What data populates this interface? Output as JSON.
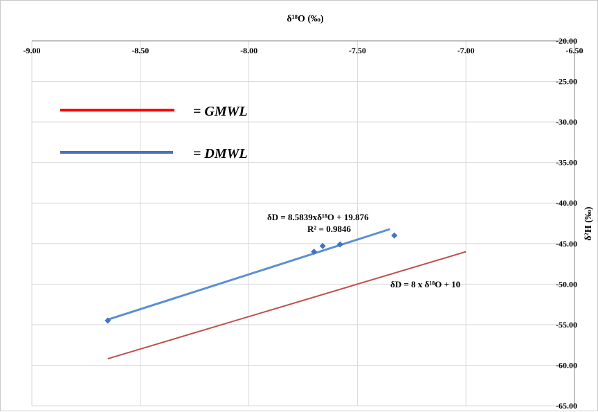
{
  "chart_data": {
    "type": "scatter",
    "xlabel": "δ¹⁸O (‰)",
    "ylabel": "δ²H (‰)",
    "xlim": [
      -9.0,
      -6.5
    ],
    "ylim": [
      -65.0,
      -20.0
    ],
    "x_ticks": [
      "-9.00",
      "-8.50",
      "-8.00",
      "-7.50",
      "-7.00",
      "-6.50"
    ],
    "y_ticks": [
      "-20.00",
      "-25.00",
      "-30.00",
      "-35.00",
      "-40.00",
      "-45.00",
      "-50.00",
      "-55.00",
      "-60.00",
      "-65.00"
    ],
    "x_axis_position": "top",
    "y_axis_position": "right",
    "grid": true,
    "legend": {
      "position": "top-left",
      "entries": [
        {
          "label": "= GMWL",
          "color": "#ff0000"
        },
        {
          "label": "= DMWL",
          "color": "#4472c4"
        }
      ]
    },
    "points": [
      {
        "x": -8.65,
        "y": -54.5
      },
      {
        "x": -7.7,
        "y": -46.0
      },
      {
        "x": -7.66,
        "y": -45.3
      },
      {
        "x": -7.58,
        "y": -45.1
      },
      {
        "x": -7.33,
        "y": -44.0
      }
    ],
    "point_color": "#4472c4",
    "lines": [
      {
        "name": "DMWL",
        "slope": 8.5839,
        "intercept": 19.876,
        "x_range": [
          -8.65,
          -7.35
        ],
        "color": "#5b8fd4"
      },
      {
        "name": "GMWL",
        "slope": 8,
        "intercept": 10,
        "x_range": [
          -8.65,
          -7.0
        ],
        "color": "#c0504d"
      }
    ],
    "annotations": {
      "dmwl_equation": "δD  = 8.5839xδ¹⁸O  + 19.876",
      "dmwl_r2": "R² = 0.9846",
      "gmwl_equation": "δD = 8 x δ¹⁸O + 10"
    }
  }
}
